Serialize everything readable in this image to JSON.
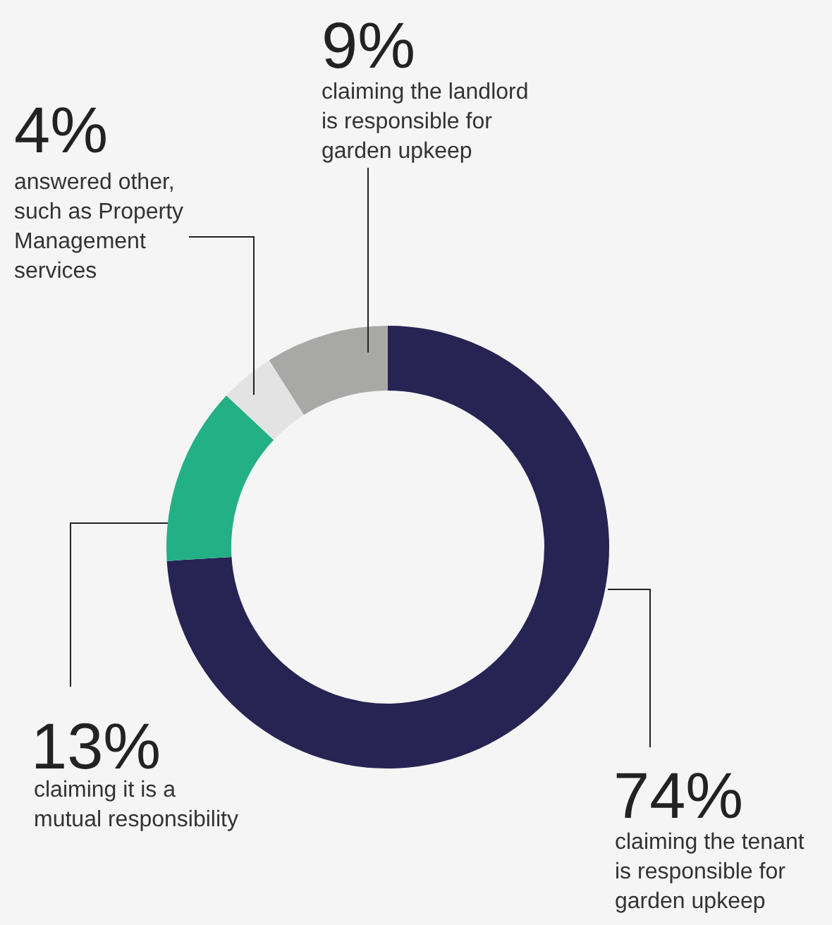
{
  "chart_data": {
    "type": "donut",
    "categories": [
      "claiming the tenant is responsible for garden upkeep",
      "claiming it is a mutual responsibility",
      "answered other, such as Property Management services",
      "claiming the landlord is responsible for garden upkeep"
    ],
    "values": [
      74,
      13,
      4,
      9
    ],
    "value_labels": [
      "74%",
      "13%",
      "4%",
      "9%"
    ],
    "colors": [
      "#272353",
      "#23b084",
      "#e3e3e3",
      "#a8a8a6"
    ]
  }
}
